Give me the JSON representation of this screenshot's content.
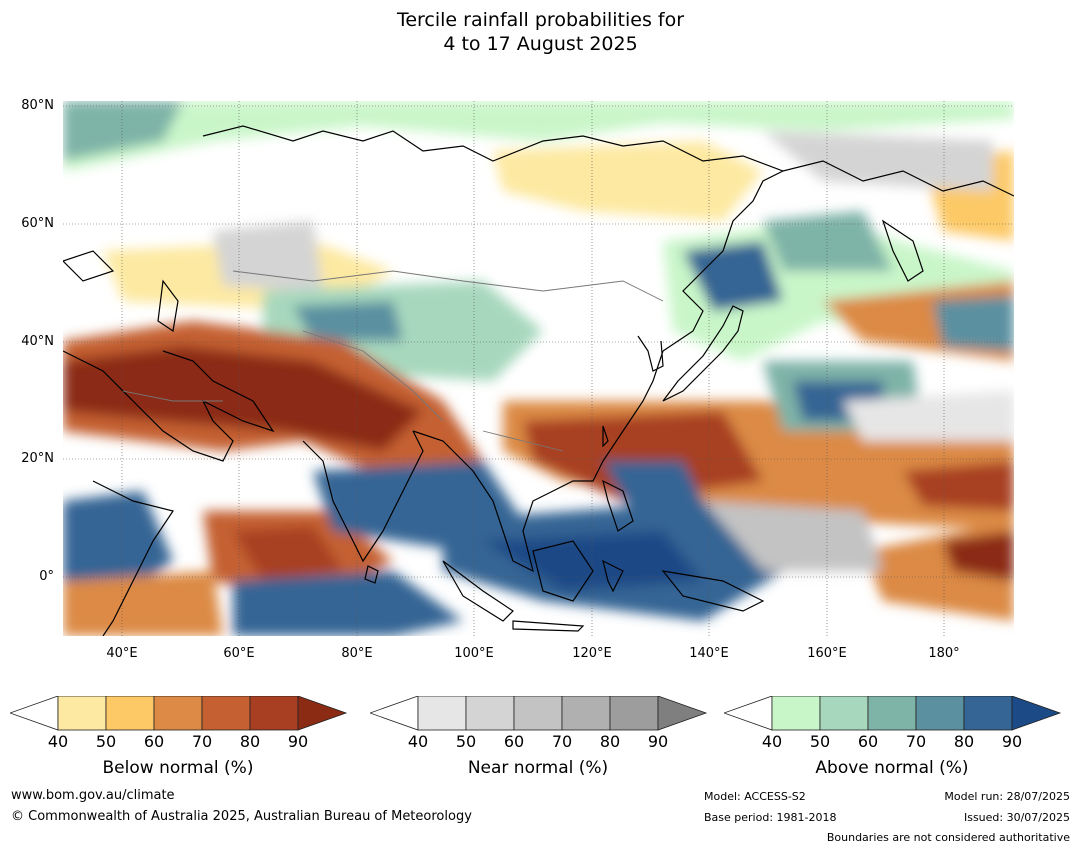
{
  "title": {
    "line1": "Tercile rainfall probabilities for",
    "line2": "4 to 17 August 2025"
  },
  "map": {
    "lat_labels": [
      "80°N",
      "60°N",
      "40°N",
      "20°N",
      "0°"
    ],
    "lon_labels": [
      "40°E",
      "60°E",
      "80°E",
      "100°E",
      "120°E",
      "140°E",
      "160°E",
      "180°"
    ],
    "extent": {
      "lon": [
        30,
        192
      ],
      "lat": [
        -10,
        81
      ]
    }
  },
  "colorbars": [
    {
      "title": "Below normal (%)",
      "ticks": [
        "40",
        "50",
        "60",
        "70",
        "80",
        "90"
      ],
      "colors": [
        "#ffffff",
        "#fde9a1",
        "#fdc966",
        "#dc8a45",
        "#c46031",
        "#a83f22",
        "#8b2b14"
      ]
    },
    {
      "title": "Near normal (%)",
      "ticks": [
        "40",
        "50",
        "60",
        "70",
        "80",
        "90"
      ],
      "colors": [
        "#ffffff",
        "#e6e6e6",
        "#d4d4d4",
        "#c3c3c3",
        "#b0b0b0",
        "#9d9d9d",
        "#7f7f7f"
      ]
    },
    {
      "title": "Above normal (%)",
      "ticks": [
        "40",
        "50",
        "60",
        "70",
        "80",
        "90"
      ],
      "colors": [
        "#ffffff",
        "#c9f6c9",
        "#a7d8bd",
        "#7eb3a7",
        "#5a90a0",
        "#346594",
        "#1c4a86"
      ]
    }
  ],
  "footer": {
    "website": "www.bom.gov.au/climate",
    "copyright": "© Commonwealth of Australia 2025, Australian Bureau of Meteorology",
    "model": "Model: ACCESS-S2",
    "base_period": "Base period: 1981-2018",
    "model_run": "Model run: 28/07/2025",
    "issued": "Issued: 30/07/2025",
    "disclaimer": "Boundaries are not considered authoritative"
  }
}
